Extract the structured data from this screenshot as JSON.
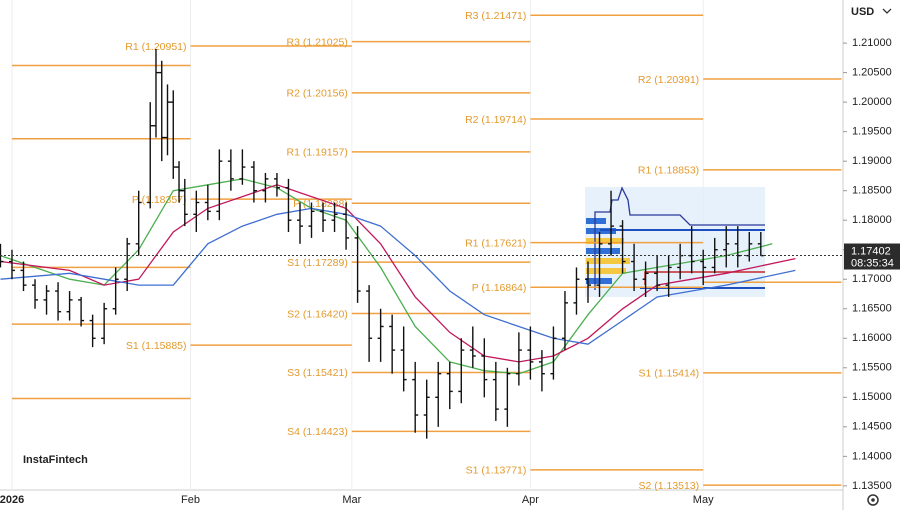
{
  "chart_data": {
    "type": "ohlc",
    "currency": "USD",
    "watermark": "InstaFintech",
    "current_price": {
      "value": 1.17402,
      "label": "1.17402",
      "countdown": "08:35:34"
    },
    "xlim": [
      -2.08,
      144.27
    ],
    "xticks": [
      {
        "value": 0,
        "label": "2026"
      },
      {
        "value": 31,
        "label": "Feb"
      },
      {
        "value": 59,
        "label": "Mar"
      },
      {
        "value": 90,
        "label": "Apr"
      },
      {
        "value": 120,
        "label": "May"
      }
    ],
    "ylim": [
      1.1343,
      1.2173
    ],
    "yticks": [
      {
        "value": 1.21,
        "label": "1.21000"
      },
      {
        "value": 1.205,
        "label": "1.20500"
      },
      {
        "value": 1.2,
        "label": "1.20000"
      },
      {
        "value": 1.195,
        "label": "1.19500"
      },
      {
        "value": 1.19,
        "label": "1.19000"
      },
      {
        "value": 1.185,
        "label": "1.18500"
      },
      {
        "value": 1.18,
        "label": "1.18000"
      },
      {
        "value": 1.175,
        "label": "1.17500"
      },
      {
        "value": 1.17,
        "label": "1.17000"
      },
      {
        "value": 1.165,
        "label": "1.16500"
      },
      {
        "value": 1.16,
        "label": "1.16000"
      },
      {
        "value": 1.155,
        "label": "1.15500"
      },
      {
        "value": 1.15,
        "label": "1.15000"
      },
      {
        "value": 1.145,
        "label": "1.14500"
      },
      {
        "value": 1.14,
        "label": "1.14000"
      },
      {
        "value": 1.135,
        "label": "1.13500"
      }
    ],
    "bar_color": "#111111",
    "level_color": "#f0a040",
    "ohlc": {
      "x": [
        -2,
        0,
        2,
        4,
        6,
        8,
        10,
        12,
        14,
        16,
        18,
        20,
        22,
        24,
        25,
        26,
        27,
        28,
        29,
        30,
        32,
        34,
        36,
        38,
        40,
        42,
        44,
        46,
        48,
        50,
        52,
        54,
        56,
        58,
        60,
        62,
        64,
        66,
        68,
        70,
        72,
        74,
        76,
        78,
        80,
        82,
        84,
        86,
        88,
        90,
        92,
        94,
        96,
        98,
        100,
        102,
        104,
        106,
        108,
        110,
        112,
        114,
        116,
        118,
        120,
        122,
        124,
        126,
        128,
        130
      ],
      "open": [
        1.1745,
        1.173,
        1.1715,
        1.169,
        1.1665,
        1.168,
        1.1645,
        1.1665,
        1.163,
        1.16,
        1.165,
        1.17,
        1.176,
        1.183,
        1.196,
        1.205,
        1.194,
        1.2,
        1.189,
        1.185,
        1.181,
        1.183,
        1.1815,
        1.19,
        1.187,
        1.189,
        1.185,
        1.187,
        1.1855,
        1.18,
        1.179,
        1.1815,
        1.18,
        1.181,
        1.177,
        1.168,
        1.16,
        1.162,
        1.158,
        1.153,
        1.147,
        1.15,
        1.154,
        1.151,
        1.158,
        1.157,
        1.153,
        1.148,
        1.154,
        1.158,
        1.156,
        1.154,
        1.16,
        1.166,
        1.17,
        1.169,
        1.176,
        1.179,
        1.173,
        1.17,
        1.171,
        1.169,
        1.172,
        1.174,
        1.173,
        1.172,
        1.175,
        1.176,
        1.174,
        1.176
      ],
      "high": [
        1.176,
        1.175,
        1.173,
        1.17,
        1.169,
        1.1695,
        1.168,
        1.167,
        1.164,
        1.166,
        1.172,
        1.177,
        1.185,
        1.2,
        1.209,
        1.207,
        1.203,
        1.202,
        1.19,
        1.187,
        1.185,
        1.186,
        1.192,
        1.192,
        1.192,
        1.19,
        1.188,
        1.188,
        1.187,
        1.183,
        1.183,
        1.183,
        1.183,
        1.183,
        1.179,
        1.169,
        1.165,
        1.164,
        1.162,
        1.156,
        1.153,
        1.156,
        1.156,
        1.16,
        1.162,
        1.16,
        1.156,
        1.155,
        1.161,
        1.162,
        1.158,
        1.162,
        1.168,
        1.172,
        1.173,
        1.178,
        1.185,
        1.18,
        1.176,
        1.173,
        1.174,
        1.174,
        1.176,
        1.179,
        1.175,
        1.177,
        1.179,
        1.179,
        1.178,
        1.178
      ],
      "low": [
        1.172,
        1.17,
        1.168,
        1.165,
        1.164,
        1.163,
        1.163,
        1.162,
        1.1585,
        1.159,
        1.164,
        1.168,
        1.174,
        1.182,
        1.194,
        1.19,
        1.191,
        1.187,
        1.183,
        1.179,
        1.178,
        1.18,
        1.18,
        1.185,
        1.186,
        1.183,
        1.183,
        1.184,
        1.178,
        1.176,
        1.177,
        1.178,
        1.178,
        1.175,
        1.166,
        1.156,
        1.156,
        1.154,
        1.151,
        1.144,
        1.143,
        1.145,
        1.148,
        1.149,
        1.155,
        1.15,
        1.146,
        1.145,
        1.152,
        1.153,
        1.151,
        1.153,
        1.158,
        1.164,
        1.166,
        1.167,
        1.174,
        1.171,
        1.168,
        1.167,
        1.168,
        1.167,
        1.17,
        1.171,
        1.169,
        1.171,
        1.172,
        1.172,
        1.173,
        1.174
      ],
      "close": [
        1.173,
        1.1715,
        1.169,
        1.1665,
        1.168,
        1.1645,
        1.1665,
        1.163,
        1.16,
        1.165,
        1.17,
        1.176,
        1.183,
        1.196,
        1.205,
        1.194,
        1.2,
        1.189,
        1.185,
        1.181,
        1.183,
        1.1815,
        1.19,
        1.187,
        1.189,
        1.185,
        1.187,
        1.1855,
        1.18,
        1.179,
        1.1815,
        1.18,
        1.181,
        1.177,
        1.168,
        1.16,
        1.162,
        1.158,
        1.153,
        1.147,
        1.15,
        1.154,
        1.151,
        1.158,
        1.157,
        1.153,
        1.148,
        1.154,
        1.158,
        1.156,
        1.154,
        1.16,
        1.166,
        1.17,
        1.169,
        1.176,
        1.179,
        1.173,
        1.17,
        1.171,
        1.169,
        1.172,
        1.174,
        1.173,
        1.172,
        1.175,
        1.176,
        1.174,
        1.176,
        1.174
      ]
    },
    "moving_averages": [
      {
        "color": "#4caf50",
        "x": [
          -2,
          10,
          16,
          22,
          28,
          34,
          40,
          46,
          52,
          58,
          64,
          70,
          76,
          82,
          88,
          94,
          100,
          106,
          112,
          118,
          124,
          132
        ],
        "values": [
          1.174,
          1.17,
          1.169,
          1.175,
          1.185,
          1.186,
          1.187,
          1.1855,
          1.182,
          1.18,
          1.172,
          1.162,
          1.156,
          1.1545,
          1.154,
          1.156,
          1.164,
          1.171,
          1.172,
          1.173,
          1.174,
          1.176
        ]
      },
      {
        "color": "#c2185b",
        "x": [
          -2,
          10,
          16,
          22,
          28,
          34,
          40,
          46,
          52,
          58,
          64,
          70,
          76,
          82,
          88,
          94,
          100,
          106,
          112,
          118,
          124,
          136
        ],
        "values": [
          1.173,
          1.1715,
          1.169,
          1.17,
          1.178,
          1.182,
          1.184,
          1.186,
          1.184,
          1.182,
          1.176,
          1.167,
          1.161,
          1.157,
          1.156,
          1.157,
          1.16,
          1.165,
          1.169,
          1.17,
          1.171,
          1.1735
        ]
      },
      {
        "color": "#3f6fd1",
        "x": [
          -2,
          10,
          16,
          22,
          28,
          34,
          40,
          46,
          52,
          58,
          64,
          70,
          76,
          82,
          88,
          94,
          100,
          106,
          112,
          118,
          124,
          136
        ],
        "values": [
          1.17,
          1.171,
          1.17,
          1.169,
          1.169,
          1.176,
          1.179,
          1.181,
          1.182,
          1.181,
          1.179,
          1.174,
          1.168,
          1.164,
          1.162,
          1.16,
          1.159,
          1.163,
          1.167,
          1.168,
          1.169,
          1.1715
        ]
      }
    ],
    "pivot_levels": [
      {
        "label": null,
        "value": 1.2062,
        "start": 0,
        "end": 31
      },
      {
        "label": null,
        "value": 1.1938,
        "start": 0,
        "end": 31
      },
      {
        "label": null,
        "value": 1.172,
        "start": 0,
        "end": 31
      },
      {
        "label": null,
        "value": 1.1624,
        "start": 0,
        "end": 31
      },
      {
        "label": null,
        "value": 1.1498,
        "start": 0,
        "end": 31
      },
      {
        "label": "R1 (1.20951)",
        "value": 1.20951,
        "start": 31,
        "end": 59
      },
      {
        "label": "P (1.18357)",
        "value": 1.18357,
        "start": 31,
        "end": 59
      },
      {
        "label": "S1 (1.15885)",
        "value": 1.15885,
        "start": 31,
        "end": 59
      },
      {
        "label": "R3 (1.21025)",
        "value": 1.21025,
        "start": 59,
        "end": 90
      },
      {
        "label": "R2 (1.20156)",
        "value": 1.20156,
        "start": 59,
        "end": 90
      },
      {
        "label": "R1 (1.19157)",
        "value": 1.19157,
        "start": 59,
        "end": 90
      },
      {
        "label": "P (1.18288)",
        "value": 1.18288,
        "start": 59,
        "end": 90
      },
      {
        "label": "S1 (1.17289)",
        "value": 1.17289,
        "start": 59,
        "end": 90
      },
      {
        "label": "S2 (1.16420)",
        "value": 1.1642,
        "start": 59,
        "end": 90
      },
      {
        "label": "S3 (1.15421)",
        "value": 1.15421,
        "start": 59,
        "end": 90
      },
      {
        "label": "S4 (1.14423)",
        "value": 1.14423,
        "start": 59,
        "end": 90
      },
      {
        "label": "R3 (1.21471)",
        "value": 1.21471,
        "start": 90,
        "end": 120
      },
      {
        "label": "R2 (1.19714)",
        "value": 1.19714,
        "start": 90,
        "end": 120
      },
      {
        "label": "R1 (1.17621)",
        "value": 1.17621,
        "start": 90,
        "end": 120
      },
      {
        "label": "P (1.16864)",
        "value": 1.16864,
        "start": 90,
        "end": 120
      },
      {
        "label": "S1 (1.13771)",
        "value": 1.13771,
        "start": 90,
        "end": 120
      },
      {
        "label": "R2 (1.20391)",
        "value": 1.20391,
        "start": 120,
        "end": 144
      },
      {
        "label": "R1 (1.18853)",
        "value": 1.18853,
        "start": 120,
        "end": 144
      },
      {
        "label": null,
        "value": 1.1695,
        "start": 120,
        "end": 144
      },
      {
        "label": "S1 (1.15414)",
        "value": 1.15414,
        "start": 120,
        "end": 144
      },
      {
        "label": "S2 (1.13513)",
        "value": 1.13513,
        "start": 120,
        "end": 144
      }
    ]
  }
}
